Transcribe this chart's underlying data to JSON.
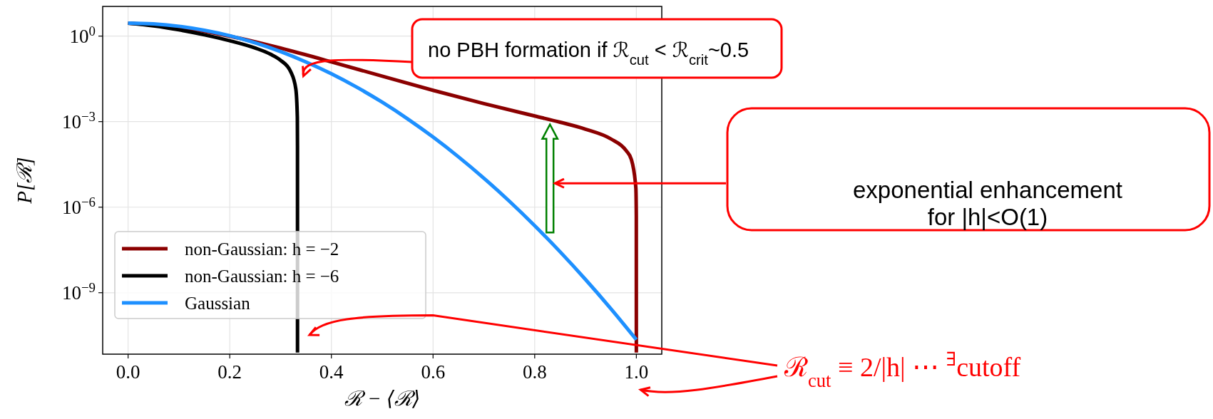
{
  "chart_data": {
    "type": "line",
    "xlabel": "ℛ − ⟨ℛ⟩",
    "ylabel": "P[ℛ]",
    "xlim": [
      -0.05,
      1.05
    ],
    "xticks": [
      {
        "value": 0,
        "label": "0.0"
      },
      {
        "value": 0.2,
        "label": "0.2"
      },
      {
        "value": 0.4,
        "label": "0.4"
      },
      {
        "value": 0.6,
        "label": "0.6"
      },
      {
        "value": 0.8,
        "label": "0.8"
      },
      {
        "value": 1,
        "label": "1.0"
      }
    ],
    "ylim": [
      7e-12,
      11
    ],
    "yticks": [
      {
        "value": 1,
        "label": "10$^{0}$"
      },
      {
        "value": 0.001,
        "label": "10$^{−3}$"
      },
      {
        "value": 1e-06,
        "label": "10$^{−6}$"
      },
      {
        "value": 1e-09,
        "label": "10$^{−9}$"
      }
    ],
    "log": "y",
    "grid": true,
    "legend": "bottom left",
    "series": [
      {
        "name": "non-Gaussian: h = −2",
        "color": "#8b0000",
        "x": [
          0,
          0.1,
          0.2,
          0.3,
          0.4,
          0.5,
          0.6,
          0.7,
          0.8,
          0.85,
          0.9,
          0.95,
          0.98,
          0.99,
          0.999,
          0.9999,
          1
        ],
        "values": [
          2.85,
          2.04,
          0.997,
          0.379,
          0.125,
          0.0392,
          0.01256,
          0.00431,
          0.00158,
          0.000954,
          0.000544,
          0.000247,
          9.6e-05,
          4.8e-05,
          4.8e-06,
          4.8e-07,
          8e-12
        ]
      },
      {
        "name": "non-Gaussian: h = −6",
        "color": "#000000",
        "x": [
          0,
          0.05,
          0.1,
          0.15,
          0.2,
          0.25,
          0.28,
          0.3,
          0.32,
          0.33,
          0.333,
          0.3333,
          0.33333
        ],
        "values": [
          2.85,
          2.29,
          1.66,
          1.11,
          0.691,
          0.382,
          0.2325,
          0.142,
          0.0562,
          0.014,
          0.0014,
          0.00014,
          8e-12
        ]
      },
      {
        "name": "Gaussian",
        "color": "#1e90ff",
        "x": [
          0,
          0.05,
          0.1,
          0.15,
          0.2,
          0.25,
          0.3,
          0.35,
          0.4,
          0.45,
          0.5,
          0.55,
          0.6,
          0.65,
          0.7,
          0.75,
          0.8,
          0.85,
          0.9,
          0.95,
          1
        ],
        "values": [
          2.85,
          2.67,
          2.21,
          1.6,
          1.03,
          0.577,
          0.286,
          0.124,
          0.0478,
          0.0161,
          0.00479,
          0.00125,
          0.000288,
          5.82e-05,
          1.04e-05,
          1.63e-06,
          2.24e-07,
          2.72e-08,
          2.91e-09,
          2.74e-10,
          2.26e-11
        ]
      }
    ],
    "annotations": [
      "no PBH formation if ℛ$_{cut}$ < ℛ$_{crit}$~0.5",
      "exponential enhancement\nfor |h|<O(1)",
      "ℛ$_{cut}$ ≡ 2/|h| ⋯ $^{∃}$cutoff"
    ]
  }
}
